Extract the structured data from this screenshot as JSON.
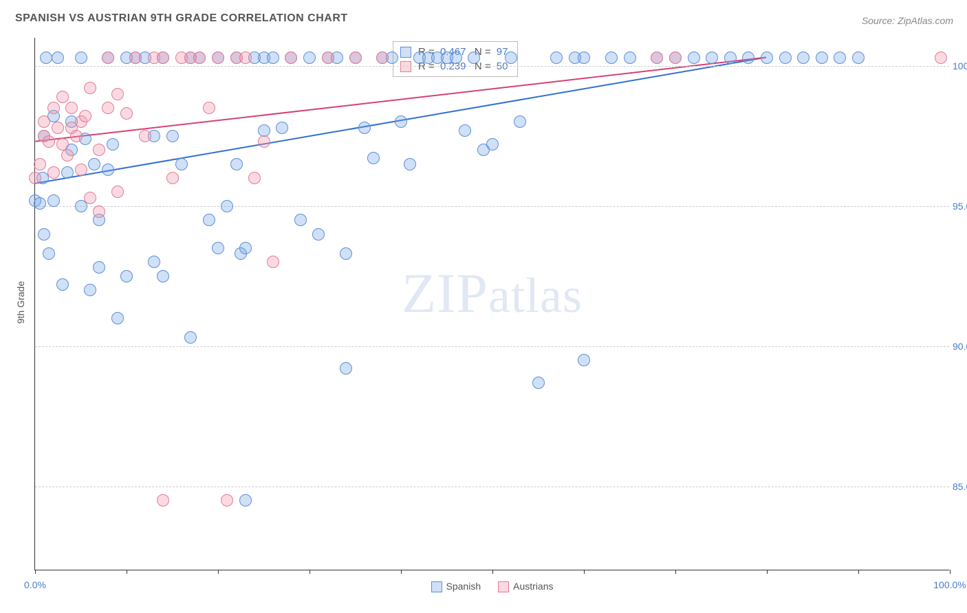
{
  "title": "SPANISH VS AUSTRIAN 9TH GRADE CORRELATION CHART",
  "source": "Source: ZipAtlas.com",
  "watermark_big": "ZIP",
  "watermark_small": "atlas",
  "y_axis_label": "9th Grade",
  "chart": {
    "type": "scatter",
    "xlim": [
      0,
      100
    ],
    "ylim": [
      82,
      101
    ],
    "background_color": "#ffffff",
    "grid_color": "#cccccc",
    "y_ticks": [
      {
        "value": 85,
        "label": "85.0%"
      },
      {
        "value": 90,
        "label": "90.0%"
      },
      {
        "value": 95,
        "label": "95.0%"
      },
      {
        "value": 100,
        "label": "100.0%"
      }
    ],
    "x_ticks": [
      0,
      10,
      20,
      30,
      40,
      50,
      60,
      70,
      80,
      90,
      100
    ],
    "x_tick_labels": [
      {
        "value": 0,
        "label": "0.0%"
      },
      {
        "value": 100,
        "label": "100.0%"
      }
    ],
    "marker_radius": 9,
    "marker_border_width": 1.5,
    "series": [
      {
        "name": "Spanish",
        "fill": "rgba(120,165,230,0.35)",
        "stroke": "#5b8fd6",
        "trend": {
          "x1": 0,
          "y1": 95.8,
          "x2": 80,
          "y2": 100.3,
          "color": "#2f6fd0",
          "width": 2
        },
        "stats": {
          "R": "0.467",
          "N": "97"
        },
        "points": [
          [
            0,
            95.2
          ],
          [
            0.5,
            95.1
          ],
          [
            0.8,
            96.0
          ],
          [
            1,
            97.5
          ],
          [
            1,
            94.0
          ],
          [
            1.2,
            100.3
          ],
          [
            1.5,
            93.3
          ],
          [
            2,
            98.2
          ],
          [
            2,
            95.2
          ],
          [
            2.5,
            100.3
          ],
          [
            3,
            92.2
          ],
          [
            3.5,
            96.2
          ],
          [
            4,
            97.0
          ],
          [
            4,
            98.0
          ],
          [
            5,
            100.3
          ],
          [
            5,
            95.0
          ],
          [
            5.5,
            97.4
          ],
          [
            6,
            92.0
          ],
          [
            6.5,
            96.5
          ],
          [
            7,
            94.5
          ],
          [
            7,
            92.8
          ],
          [
            8,
            100.3
          ],
          [
            8,
            96.3
          ],
          [
            8.5,
            97.2
          ],
          [
            9,
            91.0
          ],
          [
            10,
            100.3
          ],
          [
            10,
            92.5
          ],
          [
            11,
            100.3
          ],
          [
            12,
            100.3
          ],
          [
            13,
            93.0
          ],
          [
            13,
            97.5
          ],
          [
            14,
            92.5
          ],
          [
            14,
            100.3
          ],
          [
            15,
            97.5
          ],
          [
            16,
            96.5
          ],
          [
            17,
            90.3
          ],
          [
            17,
            100.3
          ],
          [
            18,
            100.3
          ],
          [
            19,
            94.5
          ],
          [
            20,
            100.3
          ],
          [
            20,
            93.5
          ],
          [
            21,
            95.0
          ],
          [
            22,
            96.5
          ],
          [
            22,
            100.3
          ],
          [
            22.5,
            93.3
          ],
          [
            23,
            84.5
          ],
          [
            23,
            93.5
          ],
          [
            24,
            100.3
          ],
          [
            25,
            100.3
          ],
          [
            25,
            97.7
          ],
          [
            26,
            100.3
          ],
          [
            27,
            97.8
          ],
          [
            28,
            100.3
          ],
          [
            29,
            94.5
          ],
          [
            30,
            100.3
          ],
          [
            31,
            94.0
          ],
          [
            32,
            100.3
          ],
          [
            33,
            100.3
          ],
          [
            34,
            93.3
          ],
          [
            34,
            89.2
          ],
          [
            35,
            100.3
          ],
          [
            36,
            97.8
          ],
          [
            37,
            96.7
          ],
          [
            38,
            100.3
          ],
          [
            39,
            100.3
          ],
          [
            40,
            98.0
          ],
          [
            41,
            96.5
          ],
          [
            42,
            100.3
          ],
          [
            43,
            100.3
          ],
          [
            44,
            100.3
          ],
          [
            45,
            100.3
          ],
          [
            46,
            100.3
          ],
          [
            47,
            97.7
          ],
          [
            48,
            100.3
          ],
          [
            49,
            97.0
          ],
          [
            50,
            97.2
          ],
          [
            52,
            100.3
          ],
          [
            53,
            98.0
          ],
          [
            55,
            88.7
          ],
          [
            57,
            100.3
          ],
          [
            59,
            100.3
          ],
          [
            60,
            100.3
          ],
          [
            60,
            89.5
          ],
          [
            63,
            100.3
          ],
          [
            65,
            100.3
          ],
          [
            68,
            100.3
          ],
          [
            70,
            100.3
          ],
          [
            72,
            100.3
          ],
          [
            74,
            100.3
          ],
          [
            76,
            100.3
          ],
          [
            78,
            100.3
          ],
          [
            80,
            100.3
          ],
          [
            82,
            100.3
          ],
          [
            84,
            100.3
          ],
          [
            86,
            100.3
          ],
          [
            88,
            100.3
          ],
          [
            90,
            100.3
          ]
        ]
      },
      {
        "name": "Austrians",
        "fill": "rgba(240,150,170,0.35)",
        "stroke": "#e27a9a",
        "trend": {
          "x1": 0,
          "y1": 97.3,
          "x2": 80,
          "y2": 100.3,
          "color": "#d83f72",
          "width": 2
        },
        "stats": {
          "R": "0.239",
          "N": "50"
        },
        "points": [
          [
            0,
            96.0
          ],
          [
            0.5,
            96.5
          ],
          [
            1,
            97.5
          ],
          [
            1,
            98.0
          ],
          [
            1.5,
            97.3
          ],
          [
            2,
            96.2
          ],
          [
            2,
            98.5
          ],
          [
            2.5,
            97.8
          ],
          [
            3,
            97.2
          ],
          [
            3,
            98.9
          ],
          [
            3.5,
            96.8
          ],
          [
            4,
            97.8
          ],
          [
            4,
            98.5
          ],
          [
            4.5,
            97.5
          ],
          [
            5,
            98.0
          ],
          [
            5,
            96.3
          ],
          [
            5.5,
            98.2
          ],
          [
            6,
            95.3
          ],
          [
            6,
            99.2
          ],
          [
            7,
            94.8
          ],
          [
            7,
            97.0
          ],
          [
            8,
            98.5
          ],
          [
            8,
            100.3
          ],
          [
            9,
            99.0
          ],
          [
            9,
            95.5
          ],
          [
            10,
            98.3
          ],
          [
            11,
            100.3
          ],
          [
            12,
            97.5
          ],
          [
            13,
            100.3
          ],
          [
            14,
            84.5
          ],
          [
            14,
            100.3
          ],
          [
            15,
            96.0
          ],
          [
            16,
            100.3
          ],
          [
            17,
            100.3
          ],
          [
            18,
            100.3
          ],
          [
            19,
            98.5
          ],
          [
            20,
            100.3
          ],
          [
            21,
            84.5
          ],
          [
            22,
            100.3
          ],
          [
            23,
            100.3
          ],
          [
            24,
            96.0
          ],
          [
            25,
            97.3
          ],
          [
            26,
            93.0
          ],
          [
            28,
            100.3
          ],
          [
            32,
            100.3
          ],
          [
            35,
            100.3
          ],
          [
            38,
            100.3
          ],
          [
            68,
            100.3
          ],
          [
            70,
            100.3
          ],
          [
            99,
            100.3
          ]
        ]
      }
    ]
  },
  "legend": {
    "spanish": "Spanish",
    "austrians": "Austrians"
  },
  "stats_box": {
    "R_label": "R =",
    "N_label": "N ="
  }
}
